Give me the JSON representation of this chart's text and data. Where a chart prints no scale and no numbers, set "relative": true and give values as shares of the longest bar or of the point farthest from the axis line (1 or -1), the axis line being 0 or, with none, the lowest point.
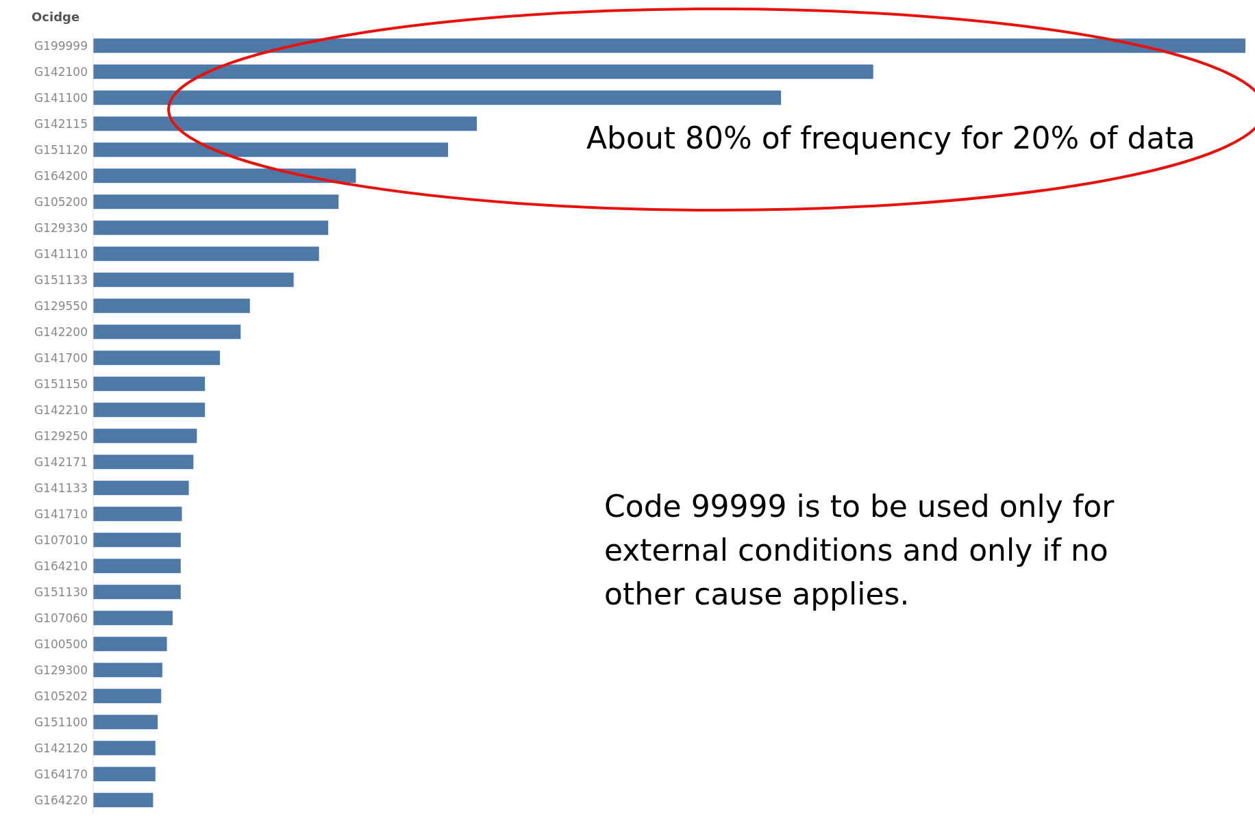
{
  "chart_data": {
    "type": "bar",
    "orientation": "horizontal",
    "relative": true,
    "ylabel": "Ocidge",
    "color": "#4e79a7",
    "categories": [
      "G199999",
      "G142100",
      "G141100",
      "G142115",
      "G151120",
      "G164200",
      "G105200",
      "G129330",
      "G141110",
      "G151133",
      "G129550",
      "G142200",
      "G141700",
      "G151150",
      "G142210",
      "G129250",
      "G142171",
      "G141133",
      "G141710",
      "G107010",
      "G164210",
      "G151130",
      "G107060",
      "G100500",
      "G129300",
      "G105202",
      "G151100",
      "G142120",
      "G164170",
      "G164220"
    ],
    "values": [
      1,
      0.677,
      0.597,
      0.333,
      0.308,
      0.228,
      0.213,
      0.204,
      0.196,
      0.174,
      0.136,
      0.128,
      0.11,
      0.097,
      0.097,
      0.09,
      0.087,
      0.083,
      0.077,
      0.076,
      0.076,
      0.076,
      0.069,
      0.064,
      0.06,
      0.059,
      0.056,
      0.054,
      0.054,
      0.052
    ],
    "annotations": [
      "About 80% of frequency for 20% of data",
      "Code 99999 is to be used only for external conditions and only if no other cause applies."
    ]
  }
}
